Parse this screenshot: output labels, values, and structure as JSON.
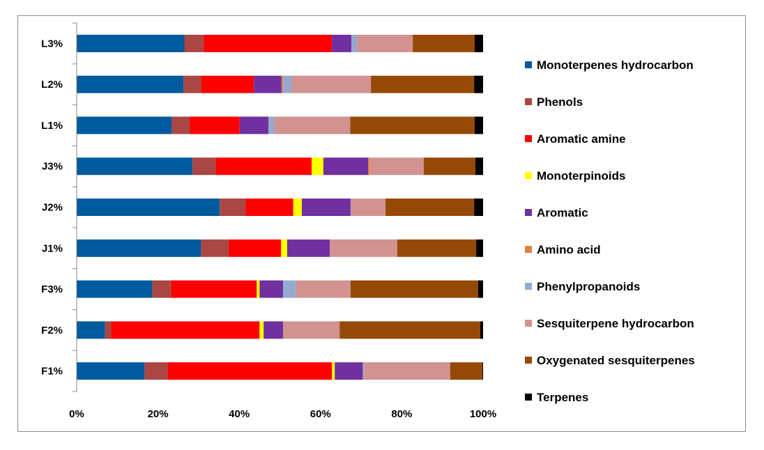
{
  "chart_data": {
    "type": "bar",
    "orientation": "horizontal",
    "stacked": "percent",
    "title": "",
    "xlabel": "",
    "ylabel": "",
    "xlim": [
      0,
      100
    ],
    "xticks": [
      "0%",
      "20%",
      "40%",
      "60%",
      "80%",
      "100%"
    ],
    "grid": false,
    "legend_position": "right",
    "categories": [
      "L3%",
      "L2%",
      "L1%",
      "J3%",
      "J2%",
      "J1%",
      "F3%",
      "F2%",
      "F1%"
    ],
    "series": [
      {
        "name": "Monoterpenes hydrocarbon",
        "color": "#005A9E",
        "values": [
          26.5,
          26.3,
          23.4,
          28.5,
          35.2,
          30.6,
          18.6,
          7.0,
          16.7
        ]
      },
      {
        "name": "Phenols",
        "color": "#AA4643",
        "values": [
          4.8,
          4.3,
          4.4,
          5.7,
          6.4,
          6.8,
          4.6,
          1.5,
          5.7
        ]
      },
      {
        "name": "Aromatic amine",
        "color": "#FF0000",
        "values": [
          31.5,
          13.0,
          12.3,
          23.6,
          11.7,
          12.9,
          21.1,
          36.5,
          40.4
        ]
      },
      {
        "name": "Monoterpinoids",
        "color": "#FFFF00",
        "values": [
          0,
          0,
          0,
          2.9,
          2.1,
          1.5,
          0.7,
          1.0,
          0.7
        ]
      },
      {
        "name": "Aromatic",
        "color": "#7030A0",
        "values": [
          4.8,
          6.8,
          7.1,
          11.0,
          12.0,
          10.5,
          5.8,
          4.8,
          6.9
        ]
      },
      {
        "name": "Amino acid",
        "color": "#E08040",
        "values": [
          0,
          0.4,
          0,
          0.4,
          0,
          0,
          0,
          0,
          0
        ]
      },
      {
        "name": "Phenylpropanoids",
        "color": "#95A9D0",
        "values": [
          1.4,
          2.1,
          1.4,
          0,
          0.1,
          0,
          3.2,
          0,
          0.3
        ]
      },
      {
        "name": "Sesquiterpene hydrocarbon",
        "color": "#D19290",
        "values": [
          13.7,
          19.5,
          18.7,
          13.3,
          8.5,
          16.6,
          13.4,
          13.9,
          21.2
        ]
      },
      {
        "name": "Oxygenated sesquiterpenes",
        "color": "#964906",
        "values": [
          15.2,
          25.4,
          30.6,
          12.7,
          21.8,
          19.4,
          31.4,
          34.6,
          7.9
        ]
      },
      {
        "name": "Terpenes",
        "color": "#000000",
        "values": [
          2.1,
          2.2,
          2.1,
          1.9,
          2.2,
          1.7,
          1.2,
          0.7,
          0.2
        ]
      }
    ]
  }
}
